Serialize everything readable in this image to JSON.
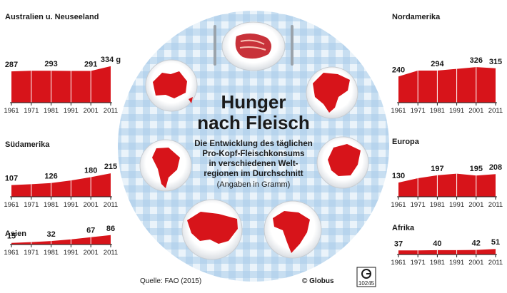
{
  "title_line1": "Hunger",
  "title_line2": "nach Fleisch",
  "subtitle_lines": [
    "Die Entwicklung des täglichen",
    "Pro-Kopf-Fleischkonsums",
    "in verschiedenen Welt-",
    "regionen im Durchschnitt"
  ],
  "units_note": "(Angaben in Gramm)",
  "source": "Quelle: FAO (2015)",
  "publisher": "© Globus",
  "logo_id": "10245",
  "colors": {
    "bar": "#d7141a",
    "table": "#a9cce8",
    "plate": "#ffffff",
    "text": "#1a1a1a"
  },
  "chart_data": [
    {
      "type": "area",
      "title": "Australien u. Neuseeland",
      "unit": "g",
      "x": [
        "1961",
        "1971",
        "1981",
        "1991",
        "2001",
        "2011"
      ],
      "values": [
        287,
        293,
        293,
        291,
        291,
        334
      ],
      "value_labels": [
        "287",
        "",
        "293",
        "",
        "291",
        "334 g"
      ]
    },
    {
      "type": "area",
      "title": "Südamerika",
      "x": [
        "1961",
        "1971",
        "1981",
        "1991",
        "2001",
        "2011"
      ],
      "values": [
        107,
        115,
        126,
        150,
        180,
        215
      ],
      "value_labels": [
        "107",
        "",
        "126",
        "",
        "180",
        "215"
      ]
    },
    {
      "type": "area",
      "title": "Asien",
      "x": [
        "1961",
        "1971",
        "1981",
        "1991",
        "2001",
        "2011"
      ],
      "values": [
        15,
        22,
        32,
        48,
        67,
        86
      ],
      "value_labels": [
        "15",
        "",
        "32",
        "",
        "67",
        "86"
      ]
    },
    {
      "type": "area",
      "title": "Nordamerika",
      "x": [
        "1961",
        "1971",
        "1981",
        "1991",
        "2001",
        "2011"
      ],
      "values": [
        240,
        294,
        294,
        310,
        326,
        315
      ],
      "value_labels": [
        "240",
        "",
        "294",
        "",
        "326",
        "315"
      ]
    },
    {
      "type": "area",
      "title": "Europa",
      "x": [
        "1961",
        "1971",
        "1981",
        "1991",
        "2001",
        "2011"
      ],
      "values": [
        130,
        170,
        197,
        212,
        195,
        208
      ],
      "value_labels": [
        "130",
        "",
        "197",
        "",
        "195",
        "208"
      ]
    },
    {
      "type": "area",
      "title": "Afrika",
      "x": [
        "1961",
        "1971",
        "1981",
        "1991",
        "2001",
        "2011"
      ],
      "values": [
        37,
        38,
        40,
        40,
        42,
        51
      ],
      "value_labels": [
        "37",
        "",
        "40",
        "",
        "42",
        "51"
      ]
    }
  ]
}
